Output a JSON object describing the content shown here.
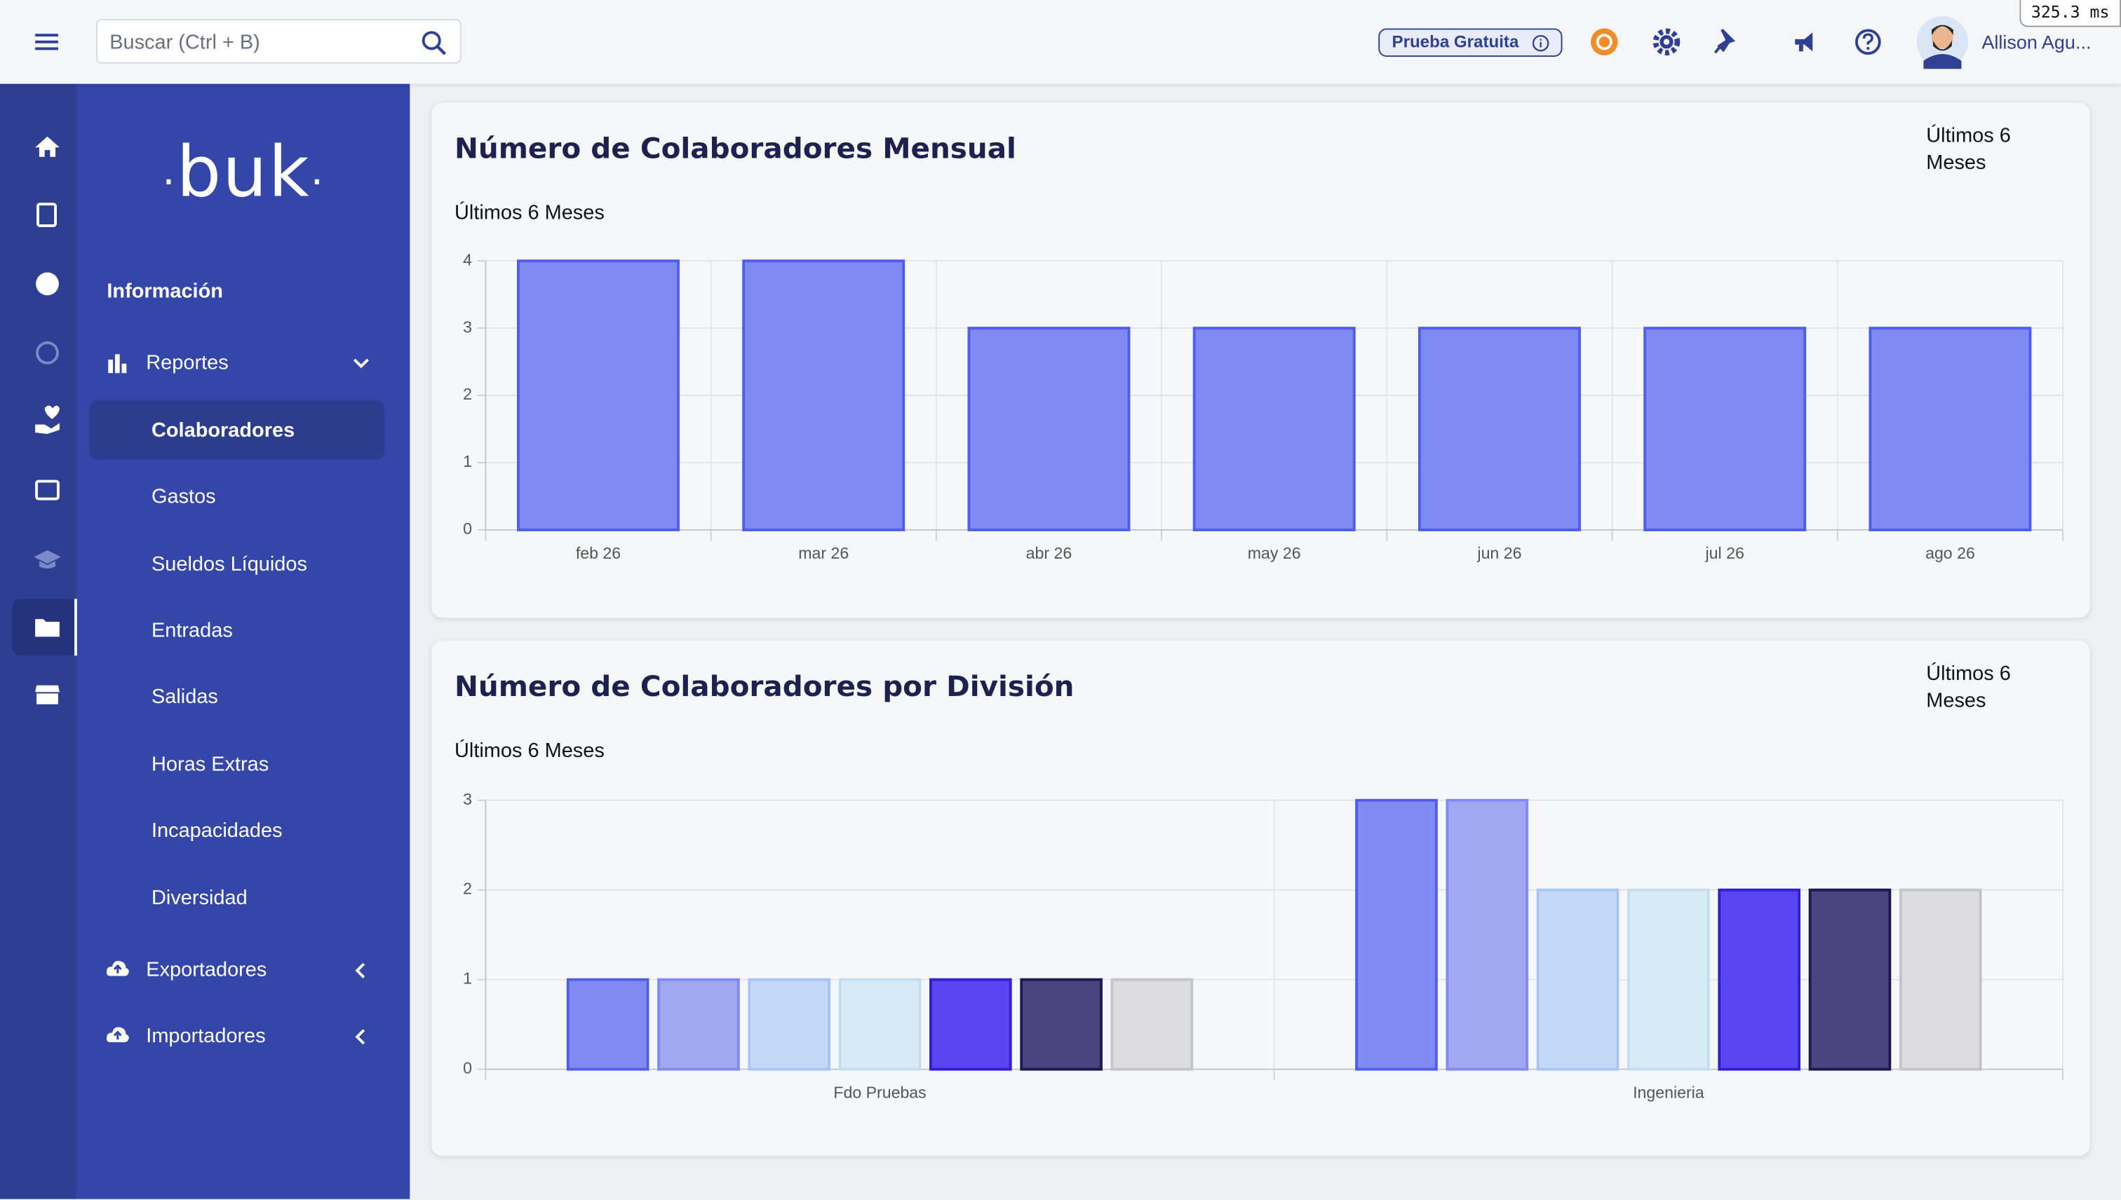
{
  "header": {
    "search_placeholder": "Buscar (Ctrl + B)",
    "trial_badge": "Prueba Gratuita",
    "user_name": "Allison Agu...",
    "perf_badge": "325.3 ms"
  },
  "sidebar": {
    "logo": "buk",
    "section": "Información",
    "reports": {
      "label": "Reportes",
      "items": [
        "Colaboradores",
        "Gastos",
        "Sueldos Líquidos",
        "Entradas",
        "Salidas",
        "Horas Extras",
        "Incapacidades",
        "Diversidad"
      ]
    },
    "exporters": "Exportadores",
    "importers": "Importadores"
  },
  "chart_data": [
    {
      "type": "bar",
      "title": "Número de Colaboradores Mensual",
      "filter": "Últimos 6 Meses",
      "subtitle": "Últimos 6 Meses",
      "categories": [
        "feb 26",
        "mar 26",
        "abr 26",
        "may 26",
        "jun 26",
        "jul 26",
        "ago 26"
      ],
      "values": [
        4,
        4,
        3,
        3,
        3,
        3,
        3
      ],
      "color": "#7f8af3",
      "border_color": "#4f5de8",
      "ylim": [
        0,
        4
      ],
      "yticks": [
        0,
        1,
        2,
        3,
        4
      ],
      "grid": true
    },
    {
      "type": "bar",
      "title": "Número de Colaboradores por División",
      "filter": "Últimos 6 Meses",
      "subtitle": "Últimos 6 Meses",
      "categories": [
        "Fdo Pruebas",
        "Ingenieria"
      ],
      "series": [
        {
          "color": "#7f8af3",
          "border_color": "#4f5de8",
          "values": [
            1,
            3
          ]
        },
        {
          "color": "#a0a8f2",
          "border_color": "#7f8af3",
          "values": [
            1,
            3
          ]
        },
        {
          "color": "#c4d8f8",
          "border_color": "#a9c4f2",
          "values": [
            1,
            2
          ]
        },
        {
          "color": "#d7eaf8",
          "border_color": "#c4dcf2",
          "values": [
            1,
            2
          ]
        },
        {
          "color": "#5a45f2",
          "border_color": "#2f1fd0",
          "values": [
            1,
            2
          ]
        },
        {
          "color": "#4a4580",
          "border_color": "#1c1850",
          "values": [
            1,
            2
          ]
        },
        {
          "color": "#dcdcdf",
          "border_color": "#c4c4c8",
          "values": [
            1,
            2
          ]
        }
      ],
      "ylim": [
        0,
        3
      ],
      "yticks": [
        0,
        1,
        2,
        3
      ],
      "grid": true
    }
  ]
}
